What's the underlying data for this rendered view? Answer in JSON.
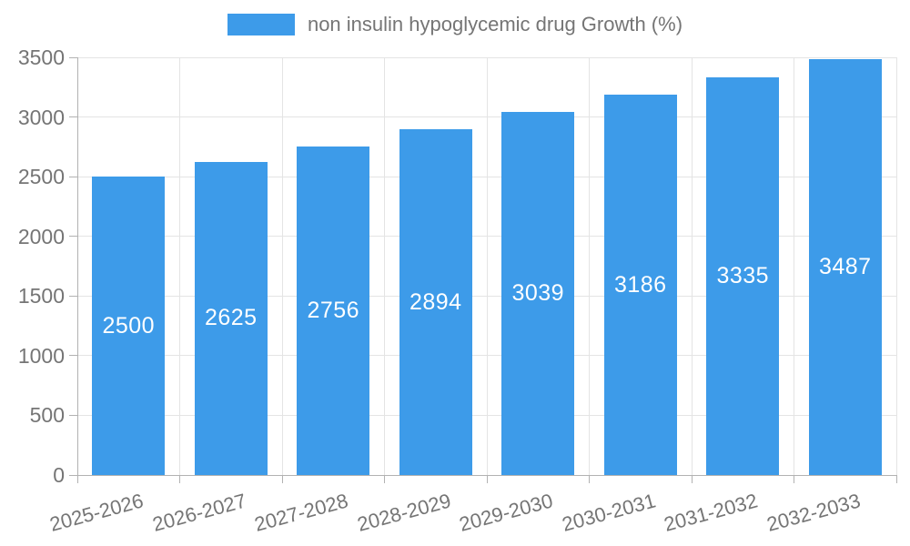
{
  "chart_data": {
    "type": "bar",
    "title": "",
    "legend_label": "non insulin hypoglycemic drug Growth (%)",
    "legend_position": "top-center",
    "categories": [
      "2025-2026",
      "2026-2027",
      "2027-2028",
      "2028-2029",
      "2029-2030",
      "2030-2031",
      "2031-2032",
      "2032-2033"
    ],
    "values": [
      2500,
      2625,
      2756,
      2894,
      3039,
      3186,
      3335,
      3487
    ],
    "bar_value_labels": [
      "2500",
      "2625",
      "2756",
      "2894",
      "3039",
      "3186",
      "3335",
      "3487"
    ],
    "xlabel": "",
    "ylabel": "",
    "ylim": [
      0,
      3500
    ],
    "yticks": [
      0,
      500,
      1000,
      1500,
      2000,
      2500,
      3000,
      3500
    ],
    "grid": true,
    "colors": {
      "bar": "#3D9BE9",
      "bar_value_text": "#FFFFFF",
      "grid": "#E4E4E4",
      "axis": "#B2B2B2",
      "text": "#757575",
      "background": "#FFFFFF"
    }
  }
}
